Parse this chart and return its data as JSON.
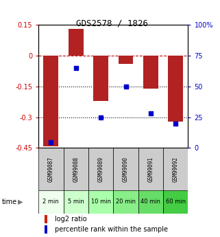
{
  "title": "GDS2578 / 1826",
  "samples": [
    "GSM99087",
    "GSM99088",
    "GSM99089",
    "GSM99090",
    "GSM99091",
    "GSM99092"
  ],
  "time_labels": [
    "2 min",
    "5 min",
    "10 min",
    "20 min",
    "40 min",
    "60 min"
  ],
  "log2_ratio": [
    -0.44,
    0.13,
    -0.22,
    -0.04,
    -0.16,
    -0.32
  ],
  "percentile_rank": [
    5,
    65,
    25,
    50,
    28,
    20
  ],
  "bar_color": "#b22222",
  "dot_color": "#0000cc",
  "ylim_left": [
    -0.45,
    0.15
  ],
  "ylim_right": [
    0,
    100
  ],
  "yticks_left": [
    0.15,
    0,
    -0.15,
    -0.3,
    -0.45
  ],
  "ytick_labels_left": [
    "0.15",
    "0",
    "-0.15",
    "-0.3",
    "-0.45"
  ],
  "yticks_right": [
    100,
    75,
    50,
    25,
    0
  ],
  "ytick_labels_right": [
    "100%",
    "75",
    "50",
    "25",
    "0"
  ],
  "hlines": [
    0,
    -0.15,
    -0.3
  ],
  "hline_styles": [
    "dashed",
    "dotted",
    "dotted"
  ],
  "hline_colors": [
    "#cc0000",
    "#000000",
    "#000000"
  ],
  "bar_width": 0.6,
  "gray_color": "#cccccc",
  "green_colors": [
    "#eeffee",
    "#ccffcc",
    "#aaffaa",
    "#88ee88",
    "#66dd66",
    "#44cc44"
  ],
  "legend_items": [
    "log2 ratio",
    "percentile rank within the sample"
  ],
  "legend_colors": [
    "#cc2200",
    "#0000cc"
  ]
}
